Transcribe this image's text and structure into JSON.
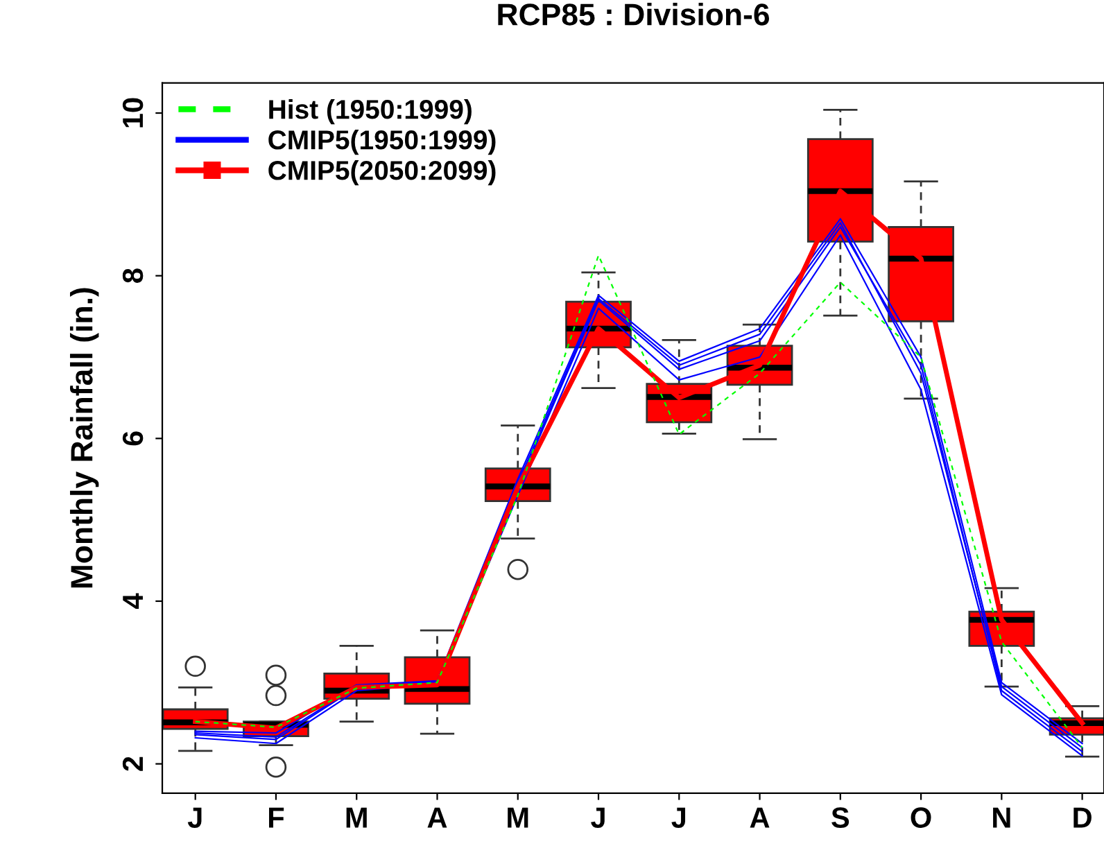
{
  "chart_data": {
    "type": "line",
    "title": "RCP85 : Division-6",
    "ylabel": "Monthly Rainfall (in.)",
    "categories": [
      "J",
      "F",
      "M",
      "A",
      "M",
      "J",
      "J",
      "A",
      "S",
      "O",
      "N",
      "D"
    ],
    "ylim": [
      1.64,
      10.37
    ],
    "yticks": [
      2,
      4,
      6,
      8,
      10
    ],
    "grid": false,
    "legend": "top left",
    "series": [
      {
        "name": "Hist (1950:1999)",
        "color": "#00ff00",
        "line_style": "dashed",
        "values": [
          2.52,
          2.45,
          2.93,
          3.0,
          5.3,
          8.25,
          6.05,
          6.8,
          7.92,
          7.0,
          3.5,
          2.2
        ]
      },
      {
        "name": "CMIP5(1950:1999)",
        "color": "#0000ff",
        "line_style": "solid",
        "values": [
          2.36,
          2.3,
          2.94,
          3.0,
          5.4,
          7.7,
          6.85,
          7.2,
          8.6,
          6.9,
          2.9,
          2.15
        ]
      },
      {
        "color": "#0000ff",
        "line_style": "solid",
        "values": [
          2.32,
          2.25,
          2.9,
          2.98,
          5.3,
          7.6,
          6.72,
          7.0,
          8.5,
          6.6,
          2.85,
          2.1
        ]
      },
      {
        "color": "#0000ff",
        "line_style": "solid",
        "values": [
          2.4,
          2.38,
          2.97,
          3.02,
          5.5,
          7.76,
          6.95,
          7.35,
          8.7,
          7.0,
          3.0,
          2.25
        ]
      },
      {
        "color": "#0000ff",
        "line_style": "solid",
        "values": [
          2.38,
          2.33,
          2.95,
          3.01,
          5.45,
          7.72,
          6.9,
          7.28,
          8.65,
          6.8,
          2.95,
          2.2
        ]
      },
      {
        "color": "#ff0000",
        "line_style": "solid",
        "values": [
          2.52,
          2.44,
          2.94,
          2.97,
          5.4,
          7.35,
          6.5,
          6.9,
          9.04,
          8.21,
          3.77,
          2.5
        ]
      },
      {
        "name": "CMIP5(2050:2099)",
        "type": "box",
        "color": "#ff0000",
        "line_style": "solid",
        "marker": "square",
        "boxes": [
          {
            "low": 2.16,
            "q1": 2.43,
            "median": 2.51,
            "q3": 2.67,
            "high": 2.94,
            "outliers": [
              3.2
            ]
          },
          {
            "low": 2.23,
            "q1": 2.34,
            "median": 2.48,
            "q3": 2.52,
            "high": 2.52,
            "outliers": [
              3.09,
              2.84,
              1.96
            ]
          },
          {
            "low": 2.52,
            "q1": 2.8,
            "median": 2.9,
            "q3": 3.11,
            "high": 3.45
          },
          {
            "low": 2.37,
            "q1": 2.74,
            "median": 2.92,
            "q3": 3.31,
            "high": 3.64
          },
          {
            "low": 4.77,
            "q1": 5.23,
            "median": 5.41,
            "q3": 5.63,
            "high": 6.16,
            "outliers": [
              4.39
            ]
          },
          {
            "low": 6.62,
            "q1": 7.12,
            "median": 7.35,
            "q3": 7.68,
            "high": 8.04
          },
          {
            "low": 6.06,
            "q1": 6.2,
            "median": 6.51,
            "q3": 6.67,
            "high": 7.21
          },
          {
            "low": 5.99,
            "q1": 6.66,
            "median": 6.87,
            "q3": 7.14,
            "high": 7.4
          },
          {
            "low": 7.51,
            "q1": 8.42,
            "median": 9.04,
            "q3": 9.68,
            "high": 10.04
          },
          {
            "low": 6.49,
            "q1": 7.44,
            "median": 8.21,
            "q3": 8.6,
            "high": 9.16
          },
          {
            "low": 2.95,
            "q1": 3.45,
            "median": 3.77,
            "q3": 3.87,
            "high": 4.16
          },
          {
            "low": 2.09,
            "q1": 2.36,
            "median": 2.5,
            "q3": 2.56,
            "high": 2.71
          }
        ]
      }
    ]
  }
}
